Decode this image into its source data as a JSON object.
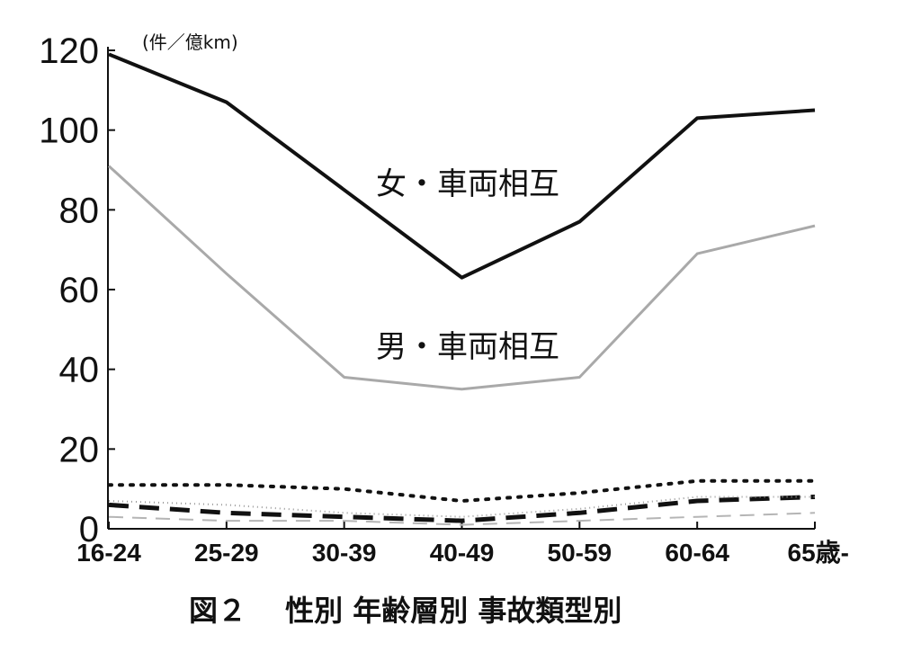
{
  "chart_data": {
    "type": "line",
    "unit_label": "(件／億km)",
    "caption": "図２　 性別 年齢層別 事故類型別",
    "categories": [
      "16-24",
      "25-29",
      "30-39",
      "40-49",
      "50-59",
      "60-64",
      "65歳-"
    ],
    "y_ticks": [
      "0",
      "20",
      "40",
      "60",
      "80",
      "100",
      "120"
    ],
    "ylim": [
      0,
      120
    ],
    "grid": false,
    "series": [
      {
        "name": "女・車両相互",
        "values": [
          119,
          107,
          85,
          63,
          77,
          103,
          105
        ],
        "color": "#111111",
        "dash": "solid",
        "width": 4
      },
      {
        "name": "男・車両相互",
        "values": [
          91,
          64,
          38,
          35,
          38,
          69,
          76
        ],
        "color": "#a9a9a9",
        "dash": "solid",
        "width": 3
      },
      {
        "values": [
          11,
          11,
          10,
          7,
          9,
          12,
          12
        ],
        "color": "#111111",
        "dash": "dotted",
        "width": 4
      },
      {
        "values": [
          6,
          4,
          3,
          2,
          4,
          7,
          8
        ],
        "color": "#111111",
        "dash": "dash",
        "width": 5
      },
      {
        "values": [
          7,
          6,
          4,
          3,
          5,
          8,
          8
        ],
        "color": "#9a9a9a",
        "dash": "fine-dot",
        "width": 2
      },
      {
        "values": [
          3,
          2,
          2,
          1,
          2,
          3,
          4
        ],
        "color": "#b5b5b5",
        "dash": "long-dash",
        "width": 2
      }
    ]
  }
}
